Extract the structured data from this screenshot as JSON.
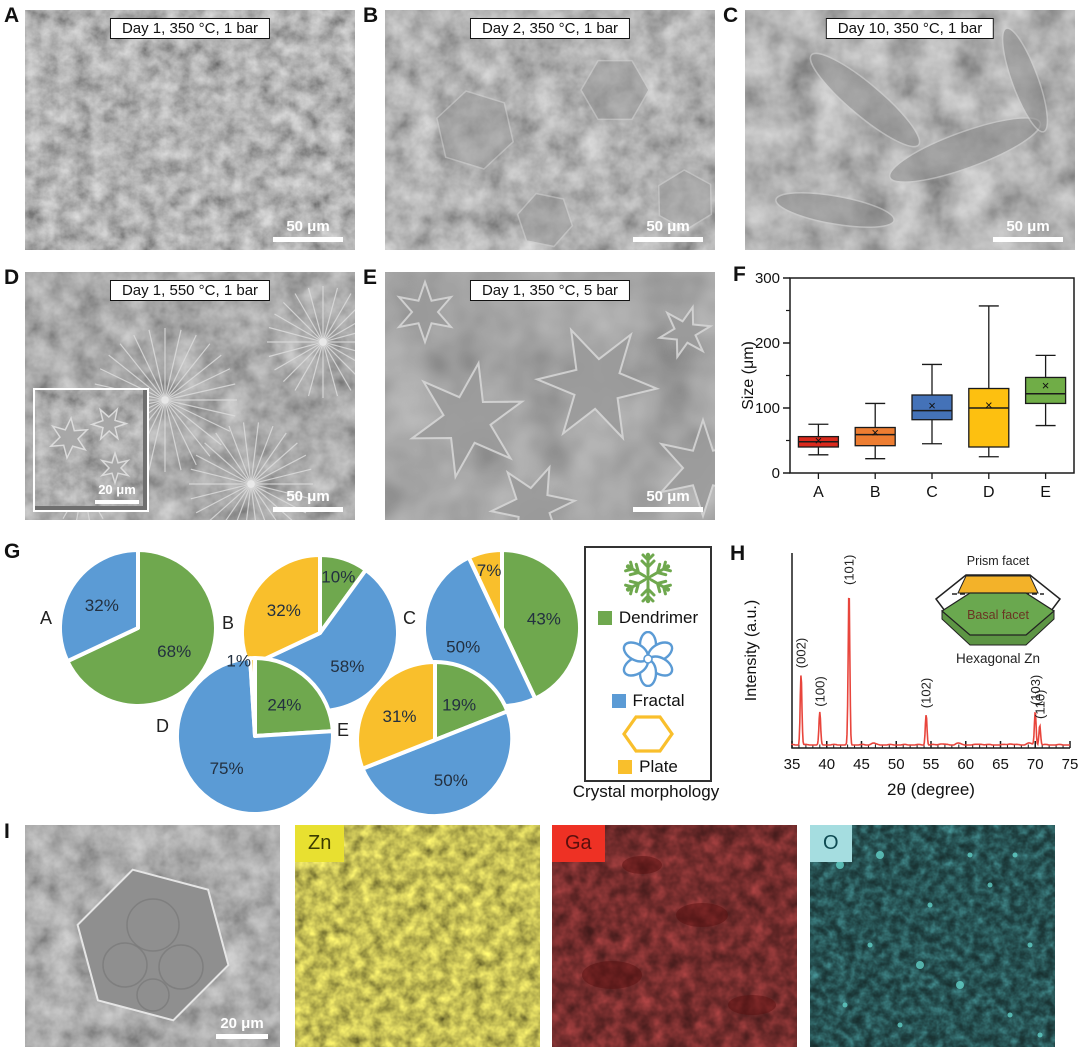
{
  "letters": {
    "a": "A",
    "b": "B",
    "c": "C",
    "d": "D",
    "e": "E",
    "f": "F",
    "g": "G",
    "h": "H",
    "i": "I"
  },
  "sem_panels": {
    "a": {
      "caption": "Day 1, 350 °C, 1 bar",
      "scale_bar": "50 μm"
    },
    "b": {
      "caption": "Day 2, 350 °C, 1 bar",
      "scale_bar": "50 μm"
    },
    "c": {
      "caption": "Day 10, 350 °C, 1 bar",
      "scale_bar": "50 μm"
    },
    "d": {
      "caption": "Day 1, 550 °C, 1 bar",
      "scale_bar": "50 μm",
      "inset_scale_bar": "20 μm"
    },
    "e": {
      "caption": "Day 1, 350 °C, 5 bar",
      "scale_bar": "50 μm"
    }
  },
  "legend": {
    "caption": "Crystal morphology",
    "items": [
      {
        "label": "Dendrimer",
        "color": "#6fa84e",
        "icon": "dendrite-icon"
      },
      {
        "label": "Fractal",
        "color": "#5b9bd5",
        "icon": "flower-icon"
      },
      {
        "label": "Plate",
        "color": "#f9bf2c",
        "icon": "hexagon-icon"
      }
    ]
  },
  "eds": {
    "sem_scale_bar": "20 μm",
    "maps": [
      {
        "element": "Zn",
        "box_color": "#e8e030",
        "text_color": "#3c3c00"
      },
      {
        "element": "Ga",
        "box_color": "#ee3124",
        "text_color": "#5a0f0c"
      },
      {
        "element": "O",
        "box_color": "#a5dde0",
        "text_color": "#0e4a52"
      }
    ]
  },
  "chart_data": [
    {
      "type": "box",
      "panel": "F",
      "ylabel": "Size (μm)",
      "ylim": [
        0,
        300
      ],
      "yticks": [
        0,
        100,
        200,
        300
      ],
      "yminor": [
        50,
        150,
        250
      ],
      "categories": [
        "A",
        "B",
        "C",
        "D",
        "E"
      ],
      "colors": [
        "#da291c",
        "#ed7d31",
        "#4472b8",
        "#fdc010",
        "#70ad47"
      ],
      "series": [
        {
          "name": "A",
          "whisker_low": 28,
          "q1": 40,
          "median": 48,
          "q3": 56,
          "whisker_high": 75,
          "mean": 50
        },
        {
          "name": "B",
          "whisker_low": 22,
          "q1": 42,
          "median": 59,
          "q3": 70,
          "whisker_high": 107,
          "mean": 62
        },
        {
          "name": "C",
          "whisker_low": 45,
          "q1": 82,
          "median": 96,
          "q3": 120,
          "whisker_high": 167,
          "mean": 104
        },
        {
          "name": "D",
          "whisker_low": 25,
          "q1": 40,
          "median": 100,
          "q3": 130,
          "whisker_high": 257,
          "mean": 105
        },
        {
          "name": "E",
          "whisker_low": 73,
          "q1": 107,
          "median": 122,
          "q3": 147,
          "whisker_high": 181,
          "mean": 135
        }
      ]
    },
    {
      "type": "pie",
      "panel": "G",
      "unit": "%",
      "slice_order": [
        "Dendrimer",
        "Fractal",
        "Plate"
      ],
      "colors": {
        "Dendrimer": "#6fa84e",
        "Fractal": "#5b9bd5",
        "Plate": "#f9bf2c"
      },
      "pies": [
        {
          "label": "A",
          "values": {
            "Dendrimer": 68,
            "Fractal": 32
          }
        },
        {
          "label": "B",
          "values": {
            "Dendrimer": 10,
            "Fractal": 58,
            "Plate": 32
          }
        },
        {
          "label": "C",
          "values": {
            "Dendrimer": 43,
            "Fractal": 50,
            "Plate": 7
          }
        },
        {
          "label": "D",
          "values": {
            "Dendrimer": 24,
            "Fractal": 75,
            "Plate": 1
          }
        },
        {
          "label": "E",
          "values": {
            "Dendrimer": 19,
            "Fractal": 50,
            "Plate": 31
          }
        }
      ]
    },
    {
      "type": "line",
      "panel": "H",
      "xlabel": "2θ (degree)",
      "ylabel": "Intensity (a.u.)",
      "xlim": [
        35,
        75
      ],
      "xticks": [
        35,
        40,
        45,
        50,
        55,
        60,
        65,
        70,
        75
      ],
      "line_color": "#e8453c",
      "peaks": [
        {
          "label": "(002)",
          "two_theta": 36.3,
          "rel_intensity": 0.46
        },
        {
          "label": "(100)",
          "two_theta": 39.0,
          "rel_intensity": 0.21
        },
        {
          "label": "(101)",
          "two_theta": 43.2,
          "rel_intensity": 1.0
        },
        {
          "label": "(102)",
          "two_theta": 54.3,
          "rel_intensity": 0.2
        },
        {
          "label": "(103)",
          "two_theta": 70.0,
          "rel_intensity": 0.22
        },
        {
          "label": "(110)",
          "two_theta": 70.65,
          "rel_intensity": 0.13
        }
      ],
      "inset": {
        "prism_label": "Prism facet",
        "basal_label": "Basal facet",
        "caption": "Hexagonal Zn",
        "prism_color": "#f3b229",
        "basal_color": "#6aa84f"
      }
    }
  ]
}
